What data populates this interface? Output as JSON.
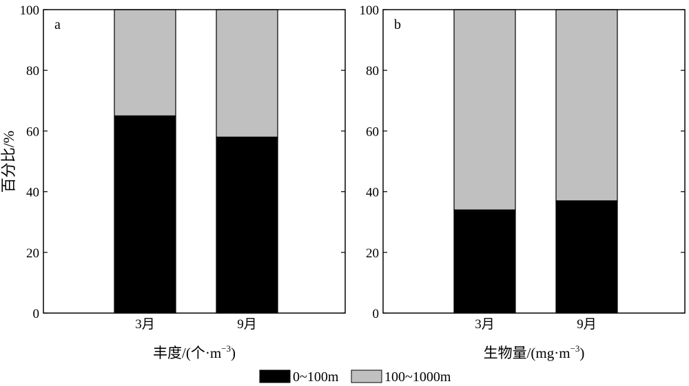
{
  "y_label": "百分比/%",
  "legend": [
    {
      "label": "0~100m",
      "color": "#000000"
    },
    {
      "label": "100~1000m",
      "color": "#c0c0c0"
    }
  ],
  "chart_data": [
    {
      "type": "bar",
      "stacked": true,
      "panel_label": "a",
      "categories": [
        "3月",
        "9月"
      ],
      "series": [
        {
          "name": "0~100m",
          "values": [
            65,
            58
          ],
          "color": "#000000"
        },
        {
          "name": "100~1000m",
          "values": [
            35,
            42
          ],
          "color": "#c0c0c0"
        }
      ],
      "xlabel_main": "丰度/(个·m",
      "xlabel_sup": "−3",
      "xlabel_close": ")",
      "ylabel": "百分比/%",
      "ylim": [
        0,
        100
      ],
      "yticks": [
        "0",
        "20",
        "40",
        "60",
        "80",
        "100"
      ],
      "grid": false
    },
    {
      "type": "bar",
      "stacked": true,
      "panel_label": "b",
      "categories": [
        "3月",
        "9月"
      ],
      "series": [
        {
          "name": "0~100m",
          "values": [
            34,
            37
          ],
          "color": "#000000"
        },
        {
          "name": "100~1000m",
          "values": [
            66,
            63
          ],
          "color": "#c0c0c0"
        }
      ],
      "xlabel_main": "生物量/(mg·m",
      "xlabel_sup": "−3",
      "xlabel_close": ")",
      "ylim": [
        0,
        100
      ],
      "yticks": [
        "0",
        "20",
        "40",
        "60",
        "80",
        "100"
      ],
      "grid": false
    }
  ]
}
